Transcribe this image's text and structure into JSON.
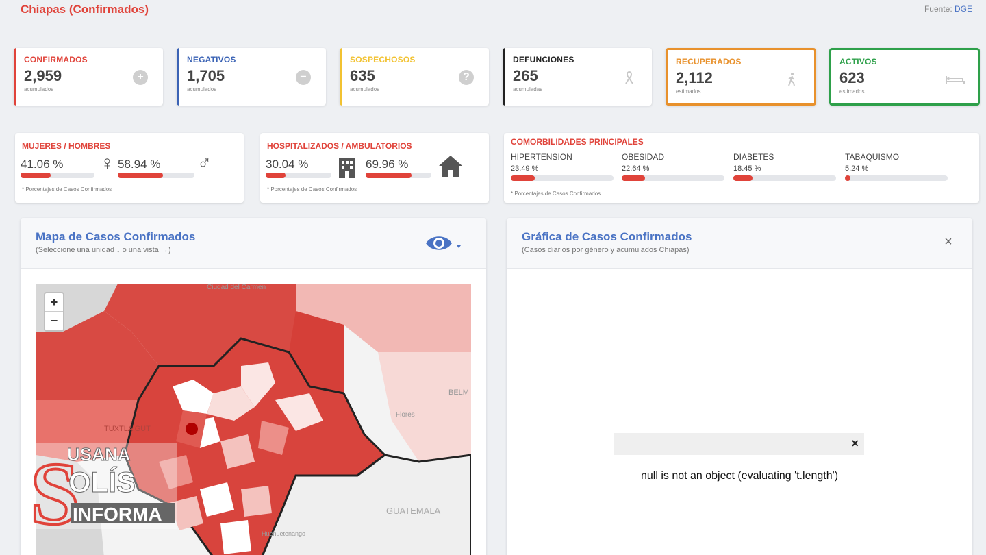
{
  "header": {
    "title": "Chiapas (Confirmados)",
    "source_prefix": "Fuente: ",
    "source_name": "DGE"
  },
  "kpis": [
    {
      "label": "CONFIRMADOS",
      "value": "2,959",
      "sub": "acumulados",
      "color": "#e0433a",
      "icon": "plus-circle-icon"
    },
    {
      "label": "NEGATIVOS",
      "value": "1,705",
      "sub": "acumulados",
      "color": "#3b63b5",
      "icon": "minus-circle-icon"
    },
    {
      "label": "SOSPECHOSOS",
      "value": "635",
      "sub": "acumulados",
      "color": "#f2c231",
      "icon": "question-circle-icon"
    },
    {
      "label": "DEFUNCIONES",
      "value": "265",
      "sub": "acumuladas",
      "color": "#222222",
      "icon": "ribbon-icon"
    },
    {
      "label": "RECUPERADOS",
      "value": "2,112",
      "sub": "estimados",
      "color": "#e8912c",
      "icon": "walking-person-icon"
    },
    {
      "label": "ACTIVOS",
      "value": "623",
      "sub": "estimados",
      "color": "#2ea04a",
      "icon": "bed-icon"
    }
  ],
  "gender": {
    "title": "MUJERES / HOMBRES",
    "women_pct": "41.06 %",
    "men_pct": "58.94 %",
    "women_value": 41.06,
    "men_value": 58.94,
    "note": "* Porcentajes de Casos Confirmados"
  },
  "hospital": {
    "title": "HOSPITALIZADOS / AMBULATORIOS",
    "hosp_pct": "30.04 %",
    "amb_pct": "69.96 %",
    "hosp_value": 30.04,
    "amb_value": 69.96,
    "note": "* Porcentajes de Casos Confirmados"
  },
  "comorbidities": {
    "title": "COMORBILIDADES PRINCIPALES",
    "items": [
      {
        "name": "HIPERTENSION",
        "pct": "23.49 %",
        "value": 23.49
      },
      {
        "name": "OBESIDAD",
        "pct": "22.64 %",
        "value": 22.64
      },
      {
        "name": "DIABETES",
        "pct": "18.45 %",
        "value": 18.45
      },
      {
        "name": "TABAQUISMO",
        "pct": "5.24 %",
        "value": 5.24
      }
    ],
    "note": "* Porcentajes de Casos Confirmados"
  },
  "map_panel": {
    "title": "Mapa de Casos Confirmados",
    "subtitle": "(Seleccione una unidad ↓ o una vista →)",
    "zoom_in": "+",
    "zoom_out": "−",
    "places": {
      "carmen": "Ciudad del Carmen",
      "belmopan": "BELM",
      "flores": "Flores",
      "tuxtla": "TUXTLA GUT",
      "guatemala": "GUATEMALA",
      "huehuetenango": "Huehuetenango"
    }
  },
  "chart_panel": {
    "title": "Gráfica de Casos Confirmados",
    "subtitle": "(Casos diarios por género y acumulados Chiapas)",
    "close": "×",
    "error_close": "×",
    "error_message": "null is not an object (evaluating 't.length')"
  },
  "watermark": {
    "line1": "USANA",
    "line2": "OLÍS",
    "line3": "INFORMA",
    "initial": "S"
  }
}
